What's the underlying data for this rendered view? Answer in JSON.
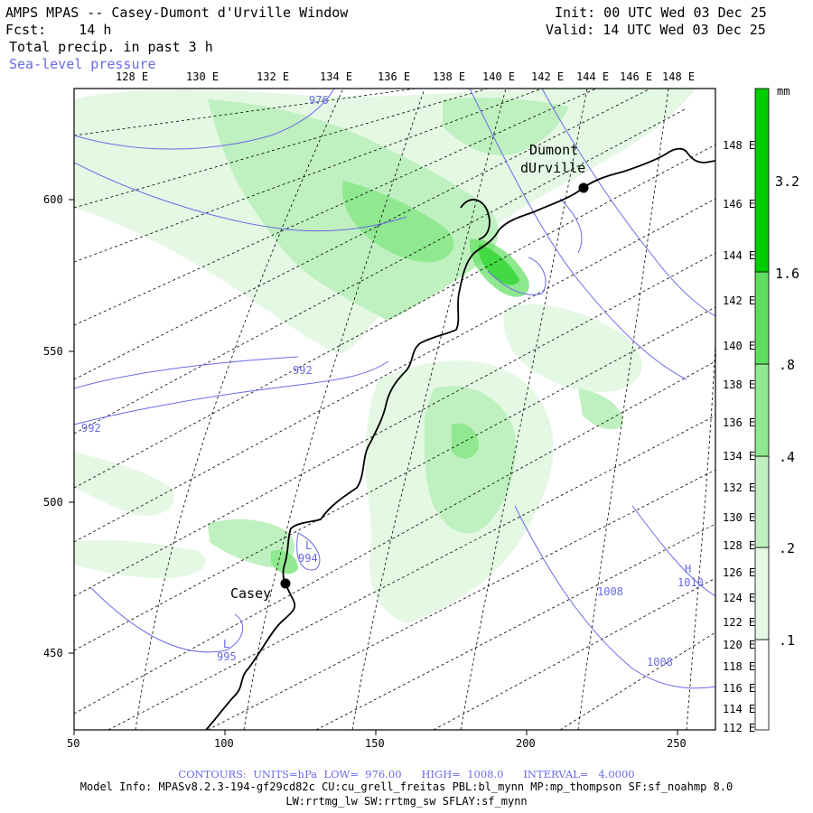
{
  "header": {
    "title": "AMPS MPAS -- Casey-Dumont d'Urville Window",
    "fcst_label": "Fcst:",
    "fcst_value": "14 h",
    "field1": "Total precip. in past 3 h",
    "field2": "Sea-level pressure",
    "init": "Init: 00 UTC Wed 03 Dec 25",
    "valid": "Valid: 14 UTC Wed 03 Dec 25"
  },
  "map": {
    "x_axis_ticks": [
      "50",
      "100",
      "150",
      "200",
      "250"
    ],
    "y_axis_ticks": [
      "450",
      "500",
      "550",
      "600"
    ],
    "longitude_labels_top": [
      "128 E",
      "130 E",
      "132 E",
      "134 E",
      "136 E",
      "138 E",
      "140 E",
      "142 E",
      "144 E",
      "146 E",
      "148 E"
    ],
    "longitude_labels_right": [
      "148 E",
      "146 E",
      "144 E",
      "142 E",
      "140 E",
      "138 E",
      "136 E",
      "134 E",
      "132 E",
      "130 E",
      "128 E",
      "126 E",
      "124 E",
      "122 E",
      "120 E",
      "118 E",
      "116 E",
      "114 E",
      "112 E"
    ],
    "stations": [
      {
        "name": "Dumont",
        "name2": "dUrville"
      },
      {
        "name": "Casey"
      }
    ],
    "pressure_labels": [
      {
        "text": "976"
      },
      {
        "text": "992"
      },
      {
        "text": "992"
      },
      {
        "text": "L",
        "sub": "994"
      },
      {
        "text": "L",
        "sub": "995"
      },
      {
        "text": "1008"
      },
      {
        "text": "1008"
      },
      {
        "text": "H",
        "sub": "1010"
      }
    ]
  },
  "colorbar": {
    "unit": "mm",
    "levels": [
      ".1",
      ".2",
      ".4",
      ".8",
      "1.6",
      "3.2"
    ],
    "colors": [
      "#ffffff",
      "#e4f8e4",
      "#bff0bf",
      "#90e890",
      "#5ede5e",
      "#00cc00"
    ]
  },
  "footer": {
    "contours": "CONTOURS:  UNITS=hPa  LOW=  976.00      HIGH=  1008.0      INTERVAL=   4.0000",
    "model_info": "Model Info: MPASv8.2.3-194-gf29cd82c CU:cu_grell_freitas PBL:bl_mynn MP:mp_thompson SF:sf_noahmp 8.0",
    "model_info2": "LW:rrtmg_lw SW:rrtmg_sw SFLAY:sf_mynn"
  },
  "colors": {
    "contour": "#6a6ae8",
    "precip_light": "#dff5df",
    "precip_mid": "#a8eaa8",
    "precip_strong": "#4fd04f"
  }
}
